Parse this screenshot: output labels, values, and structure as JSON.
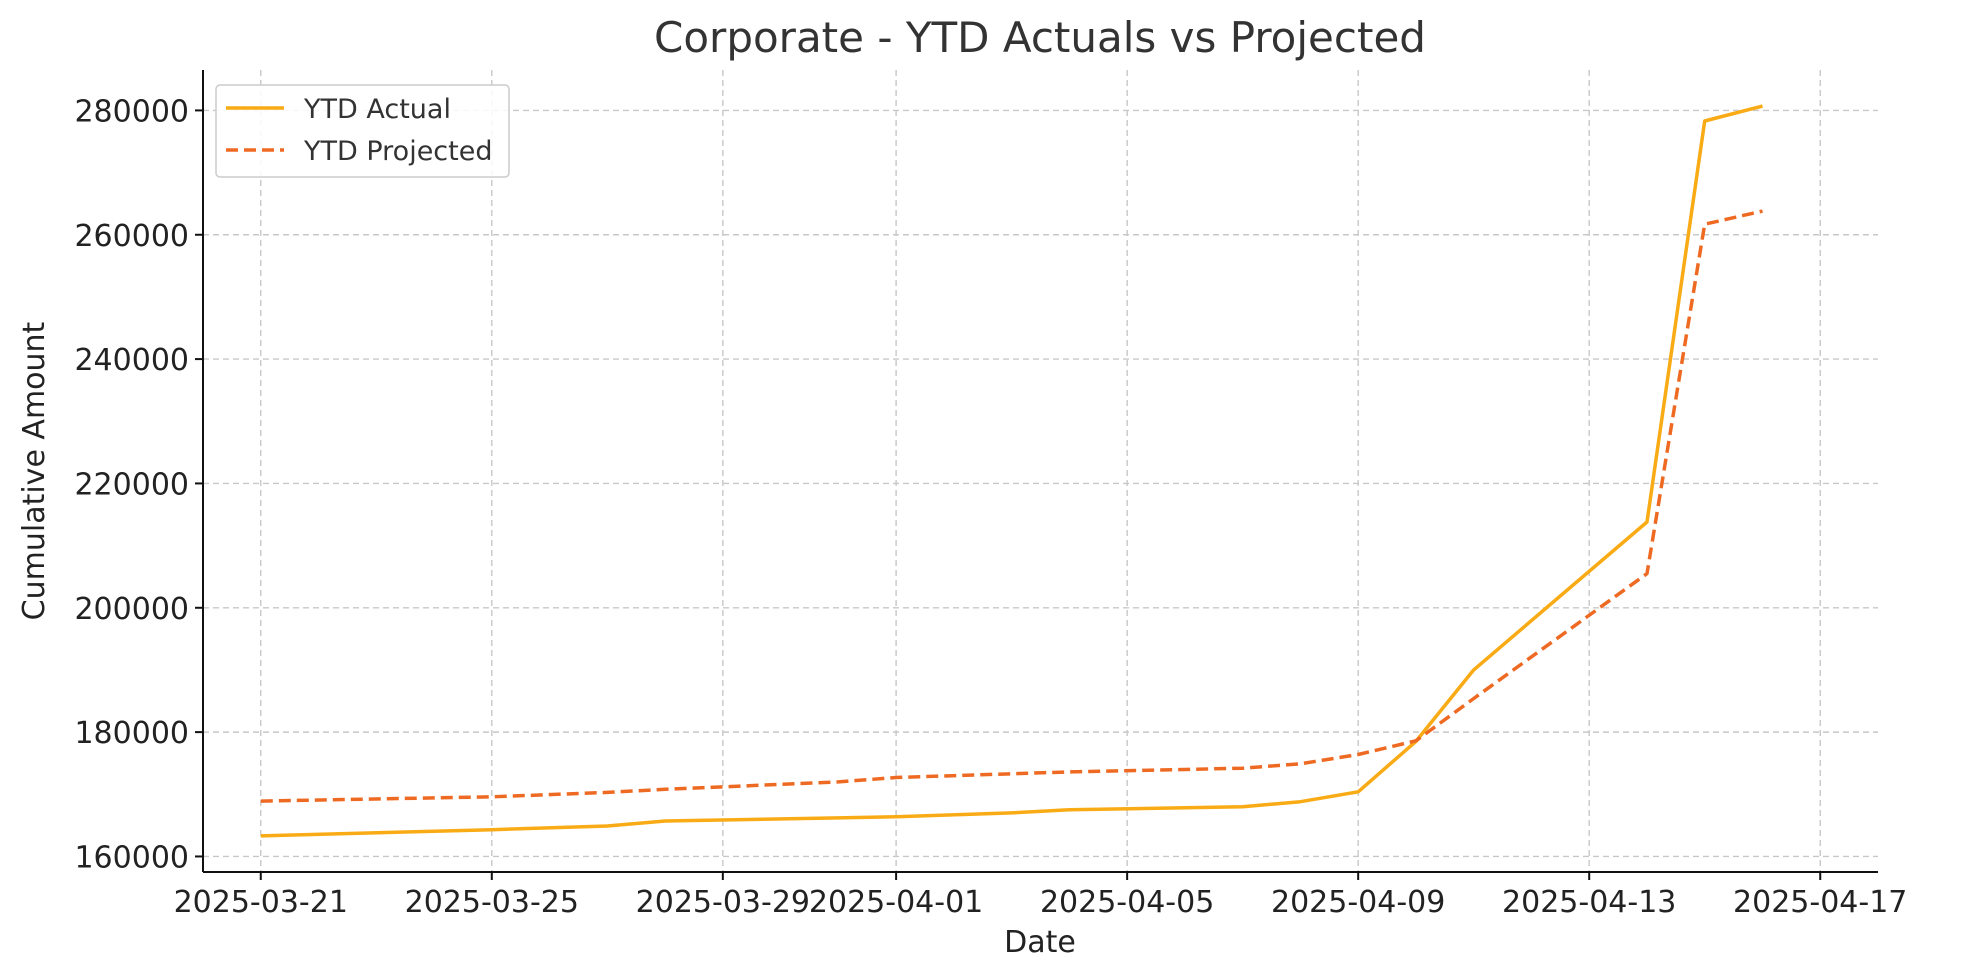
{
  "chart_data": {
    "type": "line",
    "title": "Corporate - YTD Actuals vs Projected",
    "xlabel": "Date",
    "ylabel": "Cumulative Amount",
    "x_ticks": [
      "2025-03-21",
      "2025-03-25",
      "2025-03-29",
      "2025-04-01",
      "2025-04-05",
      "2025-04-09",
      "2025-04-13",
      "2025-04-17"
    ],
    "y_ticks": [
      160000,
      180000,
      200000,
      220000,
      240000,
      260000,
      280000
    ],
    "xlim": [
      "2025-03-20",
      "2025-04-18"
    ],
    "ylim": [
      157500,
      286500
    ],
    "grid": true,
    "legend_position": "top-left",
    "x": [
      "2025-03-21",
      "2025-03-25",
      "2025-03-27",
      "2025-03-28",
      "2025-03-31",
      "2025-04-01",
      "2025-04-03",
      "2025-04-04",
      "2025-04-07",
      "2025-04-08",
      "2025-04-09",
      "2025-04-10",
      "2025-04-11",
      "2025-04-14",
      "2025-04-15",
      "2025-04-16"
    ],
    "series": [
      {
        "name": "YTD Actual",
        "color": "#f9ab15",
        "style": "solid",
        "values": [
          163300,
          164300,
          164900,
          165700,
          166200,
          166400,
          167000,
          167500,
          168000,
          168800,
          170400,
          178500,
          190000,
          213800,
          278300,
          280700
        ]
      },
      {
        "name": "YTD Projected",
        "color": "#ee6a23",
        "style": "dashed",
        "values": [
          168900,
          169600,
          170300,
          170800,
          172000,
          172700,
          173300,
          173600,
          174200,
          174900,
          176400,
          178600,
          185400,
          205500,
          261700,
          263800
        ]
      }
    ]
  }
}
